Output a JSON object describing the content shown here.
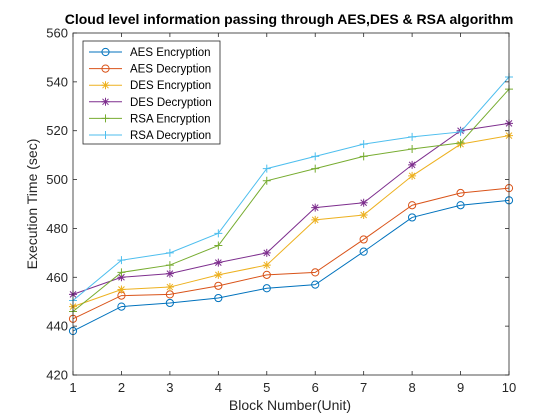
{
  "chart_data": {
    "type": "line",
    "title": "Cloud level  information passing through AES,DES & RSA algorithm",
    "xlabel": "Block Number(Unit)",
    "ylabel": "Execution Time (sec)",
    "xlim": [
      1,
      10
    ],
    "ylim": [
      420,
      560
    ],
    "xticks": [
      "1",
      "2",
      "3",
      "4",
      "5",
      "6",
      "7",
      "8",
      "9",
      "10"
    ],
    "yticks": [
      "420",
      "440",
      "460",
      "480",
      "500",
      "520",
      "540",
      "560"
    ],
    "grid": false,
    "legend_position": "top-left",
    "x": [
      1,
      2,
      3,
      4,
      5,
      6,
      7,
      8,
      9,
      10
    ],
    "series": [
      {
        "name": "AES Encryption",
        "color": "#0072BD",
        "marker": "circle",
        "values": [
          438,
          448,
          449.5,
          451.5,
          455.5,
          457,
          470.5,
          484.5,
          489.5,
          491.5
        ]
      },
      {
        "name": "AES Decryption",
        "color": "#D95319",
        "marker": "circle",
        "values": [
          443,
          452.5,
          453,
          456.5,
          461,
          462,
          475.5,
          489.5,
          494.5,
          496.5
        ]
      },
      {
        "name": "DES Encryption",
        "color": "#EDB120",
        "marker": "asterisk",
        "values": [
          448,
          455,
          456,
          461,
          465,
          483.5,
          485.5,
          501.5,
          514.5,
          518
        ]
      },
      {
        "name": "DES Decryption",
        "color": "#7E2F8E",
        "marker": "asterisk",
        "values": [
          453,
          460,
          461.5,
          466,
          470,
          488.5,
          490.5,
          506,
          520,
          523
        ]
      },
      {
        "name": "RSA Encryption",
        "color": "#77AC30",
        "marker": "plus",
        "values": [
          446,
          462,
          465,
          473,
          499.5,
          504.5,
          509.5,
          512.5,
          515,
          537
        ]
      },
      {
        "name": "RSA Decryption",
        "color": "#4DBEEE",
        "marker": "plus",
        "values": [
          450.5,
          467,
          470,
          478,
          504.5,
          509.5,
          514.5,
          517.5,
          519.5,
          542
        ]
      }
    ]
  }
}
